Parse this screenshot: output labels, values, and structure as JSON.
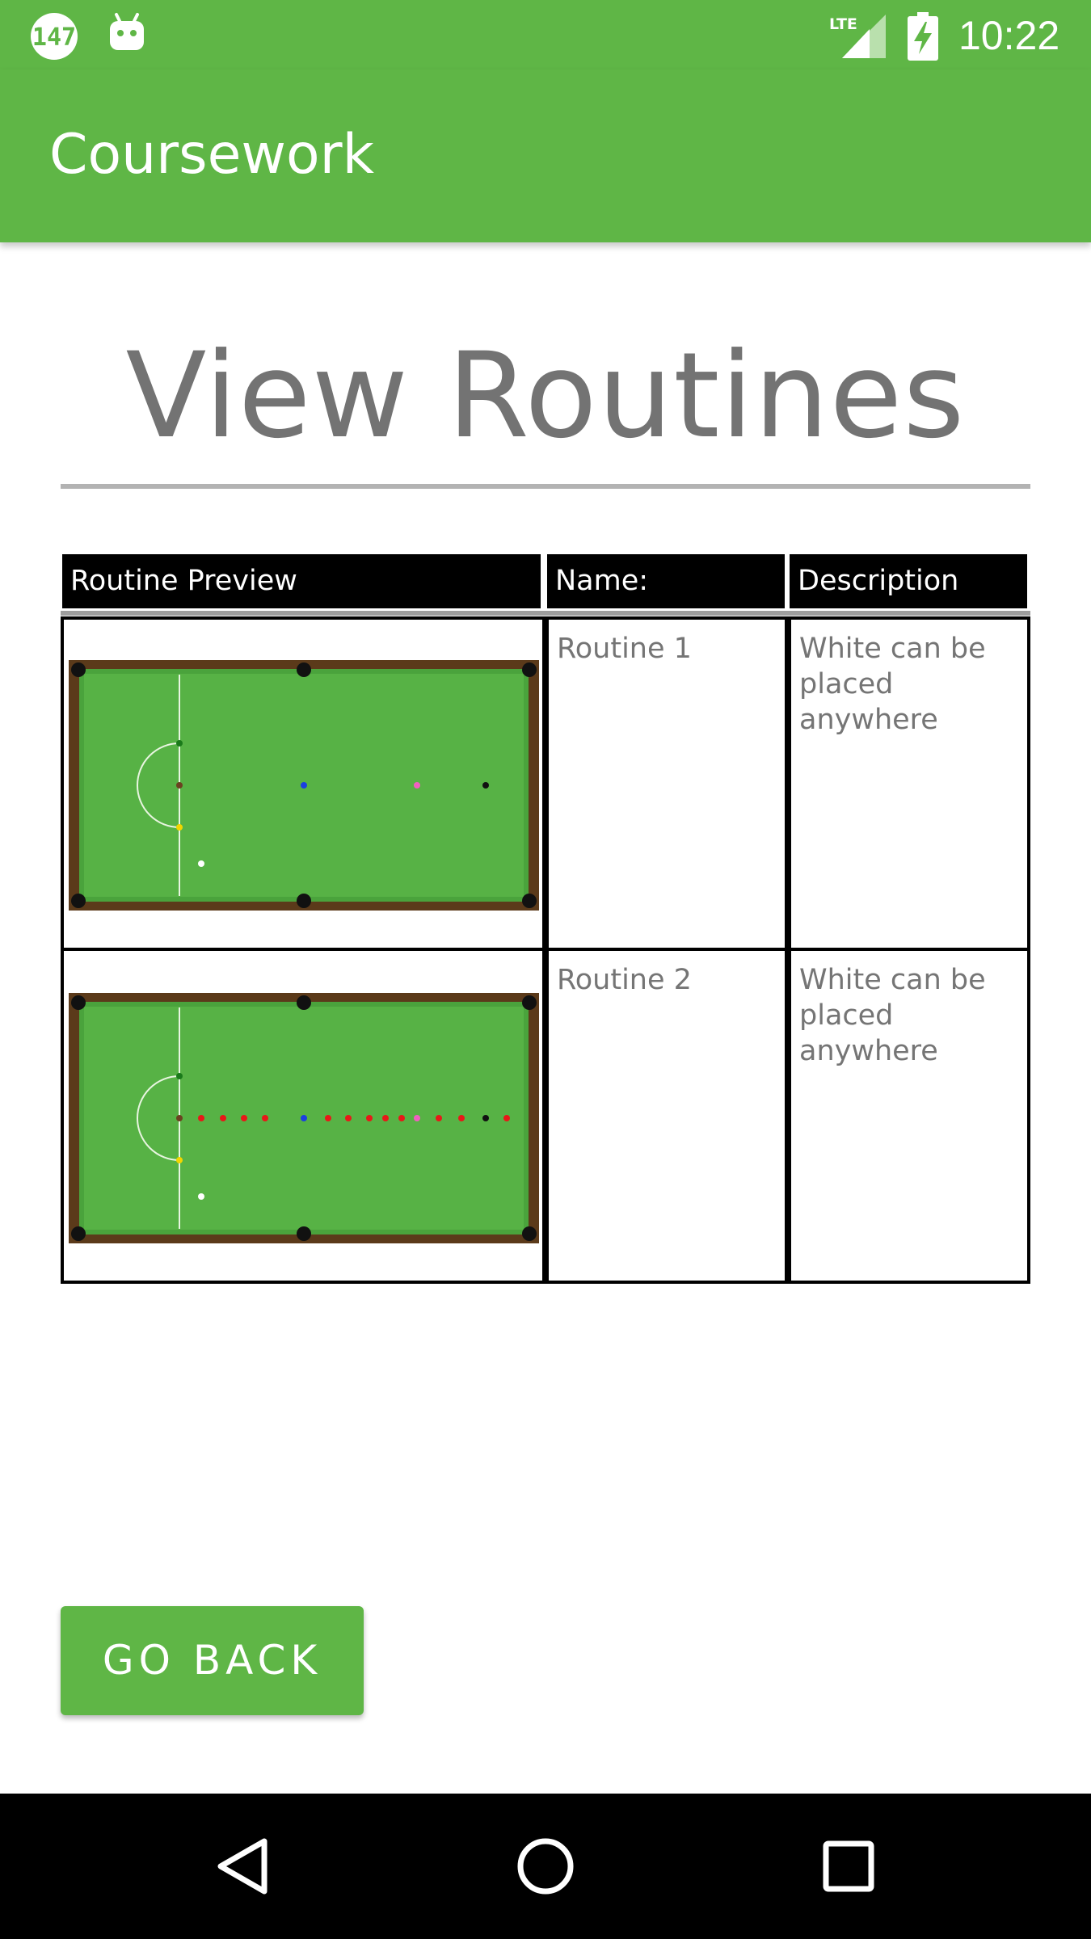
{
  "status_bar": {
    "time": "10:22",
    "notification_badge": "147",
    "icons": [
      "notification-badge-icon",
      "android-icon",
      "lte-signal-icon",
      "battery-charging-icon"
    ],
    "bar_color": "#5fb646"
  },
  "app_bar": {
    "title": "Coursework",
    "color": "#5fb646"
  },
  "page": {
    "title": "View Routines"
  },
  "table": {
    "headers": {
      "preview": "Routine Preview",
      "name": "Name:",
      "description": "Description"
    },
    "rows": [
      {
        "name": "Routine 1",
        "description": "White can be placed anywhere",
        "preview_icon": "snooker-table-routine-1-icon"
      },
      {
        "name": "Routine 2",
        "description": "White can be placed anywhere",
        "preview_icon": "snooker-table-routine-2-icon"
      }
    ]
  },
  "actions": {
    "go_back_label": "GO BACK"
  },
  "nav_bar": {
    "icons": [
      "back-triangle-icon",
      "home-circle-icon",
      "recents-square-icon"
    ]
  }
}
